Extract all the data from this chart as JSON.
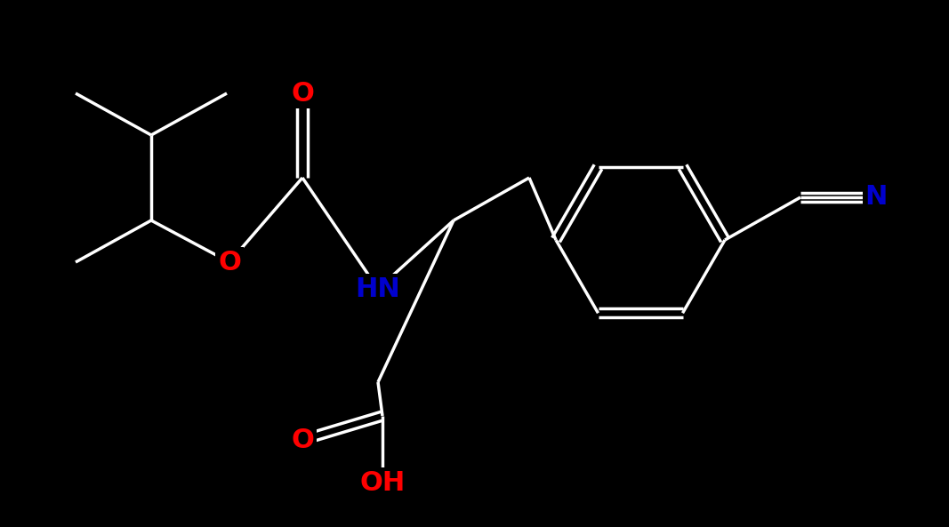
{
  "bg_color": "#000000",
  "bond_color_C": "#ffffff",
  "bond_color_O": "#ff0000",
  "bond_color_N": "#0000cd",
  "atom_O_color": "#ff0000",
  "atom_N_color": "#0000cd",
  "atom_H_color": "#ffffff",
  "lw": 2.5,
  "figsize": [
    10.67,
    5.93
  ],
  "dpi": 100,
  "xlim": [
    0,
    1067
  ],
  "ylim": [
    0,
    593
  ],
  "atoms": {
    "O1_label": "O",
    "O2_label": "O",
    "O3_label": "O",
    "NH_label": "HN",
    "OH_label": "OH",
    "N_label": "N"
  },
  "font_size": 22
}
